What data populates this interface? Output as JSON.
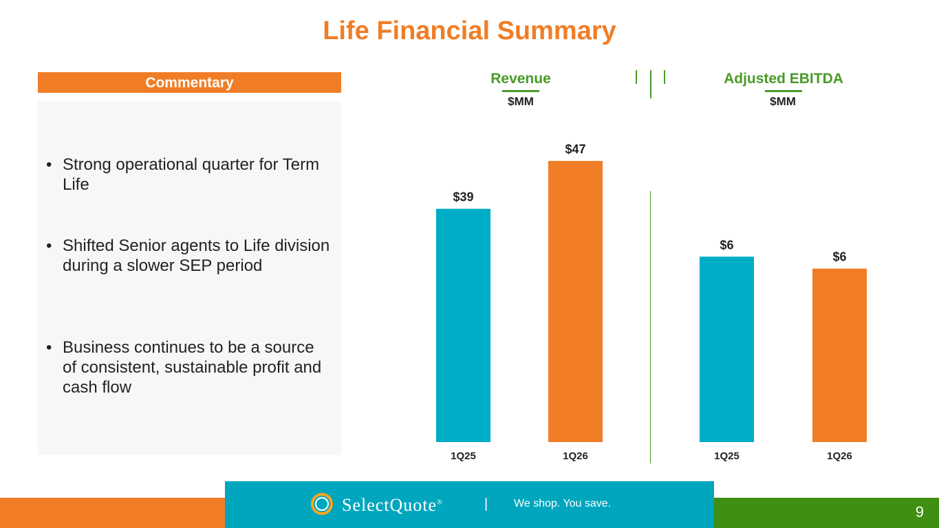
{
  "page": {
    "title": "Life Financial Summary",
    "page_number": "9"
  },
  "commentary": {
    "header": "Commentary",
    "bullets": [
      {
        "marker": "•",
        "text": "Strong operational quarter for Term Life"
      },
      {
        "marker": "•",
        "text": "Shifted Senior agents to Life division during a slower SEP period"
      },
      {
        "marker": "•",
        "text": "Business continues to be a source of consistent, sustainable profit and cash flow"
      }
    ]
  },
  "footer": {
    "brand": "SelectQuote",
    "trademark": "®",
    "separator": "|",
    "tagline": "We shop. You save.",
    "logo_icon": "ring-logo-icon"
  },
  "colors": {
    "accent_orange": "#F07D26",
    "accent_green": "#4A9A28",
    "bar_teal": "#00ADC6",
    "bar_orange": "#F07D26",
    "footer_teal": "#00A5BE"
  },
  "chart_data": [
    {
      "type": "bar",
      "title": "Revenue",
      "subtitle": "$MM",
      "categories": [
        "1Q25",
        "1Q26"
      ],
      "values": [
        39,
        47
      ],
      "data_labels": [
        "$39",
        "$47"
      ],
      "bar_colors": [
        "#00ADC6",
        "#F07D26"
      ],
      "ylim": [
        0,
        50
      ]
    },
    {
      "type": "bar",
      "title": "Adjusted EBITDA",
      "subtitle": "$MM",
      "categories": [
        "1Q25",
        "1Q26"
      ],
      "values": [
        6.2,
        5.8
      ],
      "data_labels": [
        "$6",
        "$6"
      ],
      "bar_colors": [
        "#00ADC6",
        "#F07D26"
      ],
      "ylim": [
        0,
        10
      ]
    }
  ]
}
